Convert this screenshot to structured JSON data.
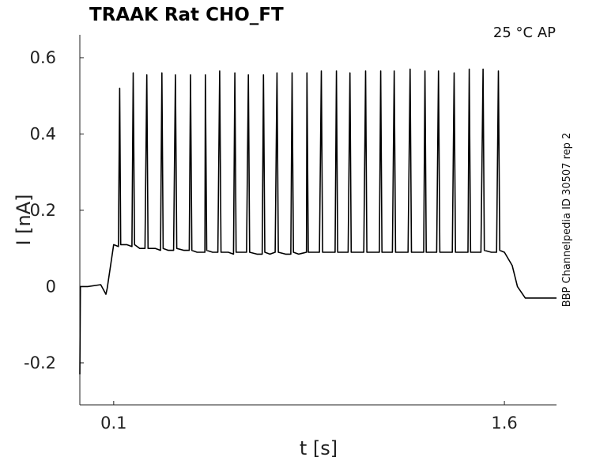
{
  "chart_data": {
    "type": "line",
    "title": "TRAAK  Rat  CHO_FT",
    "condition_label": "25 °C  AP",
    "side_label": "BBP Channelpedia ID 30507 rep 2",
    "xlabel": "t [s]",
    "ylabel": "I [nA]",
    "xlim": [
      -0.03,
      1.8
    ],
    "ylim": [
      -0.31,
      0.66
    ],
    "xticks": [
      0.1,
      1.6
    ],
    "xtick_labels": [
      "0.1",
      "1.6"
    ],
    "yticks": [
      -0.2,
      0,
      0.2,
      0.4,
      0.6
    ],
    "ytick_labels": [
      "-0.2",
      "0",
      "0.2",
      "0.4",
      "0.6"
    ],
    "grid": false,
    "color": "#000000",
    "series": [
      {
        "x": [
          -0.03,
          -0.028,
          0.0,
          0.05,
          0.07,
          0.075,
          0.1,
          0.118,
          0.123,
          0.127,
          0.132,
          0.15,
          0.17,
          0.175,
          0.18,
          0.2,
          0.22,
          0.227,
          0.232,
          0.26,
          0.28,
          0.285,
          0.29,
          0.31,
          0.33,
          0.337,
          0.342,
          0.37,
          0.39,
          0.395,
          0.4,
          0.42,
          0.45,
          0.452,
          0.457,
          0.48,
          0.5,
          0.507,
          0.512,
          0.54,
          0.56,
          0.565,
          0.57,
          0.59,
          0.61,
          0.617,
          0.622,
          0.65,
          0.67,
          0.675,
          0.68,
          0.7,
          0.72,
          0.727,
          0.732,
          0.76,
          0.78,
          0.785,
          0.79,
          0.81,
          0.84,
          0.842,
          0.847,
          0.87,
          0.89,
          0.897,
          0.902,
          0.93,
          0.95,
          0.955,
          0.96,
          0.98,
          1.0,
          1.007,
          1.012,
          1.04,
          1.06,
          1.067,
          1.072,
          1.1,
          1.12,
          1.125,
          1.13,
          1.15,
          1.17,
          1.177,
          1.182,
          1.21,
          1.23,
          1.238,
          1.243,
          1.27,
          1.29,
          1.295,
          1.3,
          1.32,
          1.34,
          1.347,
          1.352,
          1.38,
          1.4,
          1.407,
          1.412,
          1.44,
          1.46,
          1.465,
          1.47,
          1.49,
          1.51,
          1.518,
          1.523,
          1.55,
          1.57,
          1.577,
          1.582,
          1.6,
          1.63,
          1.65,
          1.68,
          1.72,
          1.75,
          1.8
        ],
        "y": [
          -0.23,
          0.0,
          0.0,
          0.005,
          -0.02,
          -0.005,
          0.11,
          0.105,
          0.52,
          0.11,
          0.11,
          0.11,
          0.105,
          0.56,
          0.11,
          0.1,
          0.1,
          0.555,
          0.1,
          0.1,
          0.095,
          0.56,
          0.1,
          0.095,
          0.095,
          0.555,
          0.1,
          0.095,
          0.095,
          0.555,
          0.095,
          0.09,
          0.09,
          0.555,
          0.095,
          0.09,
          0.09,
          0.565,
          0.09,
          0.09,
          0.085,
          0.56,
          0.09,
          0.09,
          0.09,
          0.555,
          0.09,
          0.085,
          0.085,
          0.555,
          0.09,
          0.085,
          0.09,
          0.56,
          0.09,
          0.085,
          0.085,
          0.56,
          0.09,
          0.085,
          0.09,
          0.56,
          0.09,
          0.09,
          0.09,
          0.565,
          0.09,
          0.09,
          0.09,
          0.565,
          0.09,
          0.09,
          0.09,
          0.56,
          0.09,
          0.09,
          0.09,
          0.565,
          0.09,
          0.09,
          0.09,
          0.565,
          0.09,
          0.09,
          0.09,
          0.565,
          0.09,
          0.09,
          0.09,
          0.57,
          0.09,
          0.09,
          0.09,
          0.565,
          0.09,
          0.09,
          0.09,
          0.565,
          0.09,
          0.09,
          0.09,
          0.56,
          0.09,
          0.09,
          0.09,
          0.57,
          0.09,
          0.09,
          0.09,
          0.57,
          0.095,
          0.09,
          0.09,
          0.565,
          0.095,
          0.09,
          0.055,
          0.0,
          -0.03,
          -0.03,
          -0.03,
          -0.03
        ]
      }
    ]
  }
}
